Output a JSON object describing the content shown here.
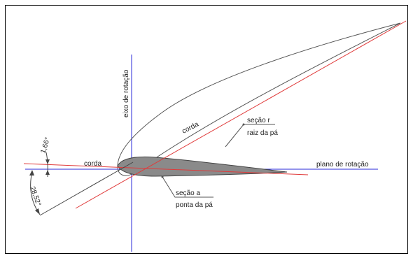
{
  "labels": {
    "axis_rotation": "eixo de rotação",
    "plane_rotation": "plano de rotação",
    "chord_tip": "corda",
    "chord_root": "corda",
    "section_r_line1": "seção r",
    "section_r_line2": "raiz da pá",
    "section_a_line1": "seção a",
    "section_a_line2": "ponta da pá",
    "angle_tip": "1,66°",
    "angle_root": "28,52°"
  },
  "colors": {
    "axis_lines": "#2a2ad8",
    "chord_lines": "#e03a3a",
    "outline": "#555555",
    "tip_fill": "#8a8a8a",
    "frame": "#000000"
  }
}
